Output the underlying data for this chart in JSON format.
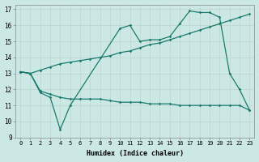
{
  "xlabel": "Humidex (Indice chaleur)",
  "xlim": [
    -0.5,
    23.5
  ],
  "ylim": [
    9,
    17.3
  ],
  "yticks": [
    9,
    10,
    11,
    12,
    13,
    14,
    15,
    16,
    17
  ],
  "xticks": [
    0,
    1,
    2,
    3,
    4,
    5,
    6,
    7,
    8,
    9,
    10,
    11,
    12,
    13,
    14,
    15,
    16,
    17,
    18,
    19,
    20,
    21,
    22,
    23
  ],
  "bg_color": "#cce8e4",
  "line_color": "#1a7a6e",
  "grid_color": "#e8e8e8",
  "line1_x": [
    0,
    1,
    2,
    3,
    4,
    5,
    6,
    7,
    8,
    9,
    10,
    11,
    12,
    13,
    14,
    15,
    16,
    17,
    18,
    19,
    20,
    21,
    22,
    23
  ],
  "line1_y": [
    13.1,
    13.0,
    13.2,
    13.4,
    13.6,
    13.7,
    13.8,
    13.9,
    14.0,
    14.1,
    14.3,
    14.4,
    14.6,
    14.8,
    14.9,
    15.1,
    15.3,
    15.5,
    15.7,
    15.9,
    16.1,
    16.3,
    16.5,
    16.7
  ],
  "line2_x": [
    0,
    1,
    2,
    3,
    4,
    5,
    10,
    11,
    12,
    13,
    14,
    15,
    16,
    17,
    18,
    19,
    20,
    21,
    22,
    23
  ],
  "line2_y": [
    13.1,
    13.0,
    11.8,
    11.5,
    9.5,
    11.0,
    15.8,
    16.0,
    15.0,
    15.1,
    15.1,
    15.3,
    16.1,
    16.9,
    16.8,
    16.8,
    16.5,
    13.0,
    12.0,
    10.7
  ],
  "line3_x": [
    0,
    1,
    2,
    3,
    4,
    5,
    6,
    7,
    8,
    9,
    10,
    11,
    12,
    13,
    14,
    15,
    16,
    17,
    18,
    19,
    20,
    21,
    22,
    23
  ],
  "line3_y": [
    13.1,
    13.0,
    11.9,
    11.7,
    11.5,
    11.4,
    11.4,
    11.4,
    11.4,
    11.3,
    11.2,
    11.2,
    11.2,
    11.1,
    11.1,
    11.1,
    11.0,
    11.0,
    11.0,
    11.0,
    11.0,
    11.0,
    11.0,
    10.7
  ]
}
